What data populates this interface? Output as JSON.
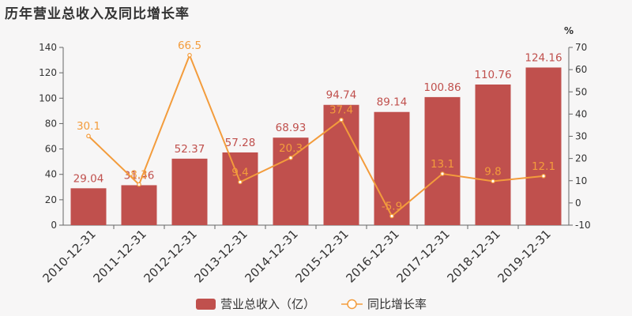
{
  "chart_data": {
    "type": "bar",
    "title": "历年营业总收入及同比增长率",
    "right_unit": "%",
    "categories": [
      "2010-12-31",
      "2011-12-31",
      "2012-12-31",
      "2013-12-31",
      "2014-12-31",
      "2015-12-31",
      "2016-12-31",
      "2017-12-31",
      "2018-12-31",
      "2019-12-31"
    ],
    "series": [
      {
        "name": "营业总收入（亿）",
        "type": "bar",
        "axis": "left",
        "color": "#c0504d",
        "values": [
          29.04,
          31.46,
          52.37,
          57.28,
          68.93,
          94.74,
          89.14,
          100.86,
          110.76,
          124.16
        ],
        "labels": [
          "29.04",
          "31.46",
          "52.37",
          "57.28",
          "68.93",
          "94.74",
          "89.14",
          "100.86",
          "110.76",
          "124.16"
        ]
      },
      {
        "name": "同比增长率",
        "type": "line",
        "axis": "right",
        "color": "#f39c3c",
        "values": [
          30.1,
          8.3,
          66.5,
          9.4,
          20.3,
          37.4,
          -5.9,
          13.1,
          9.8,
          12.1
        ],
        "labels": [
          "30.1",
          "8.3",
          "66.5",
          "9.4",
          "20.3",
          "37.4",
          "-5.9",
          "13.1",
          "9.8",
          "12.1"
        ]
      }
    ],
    "y_left": {
      "lim": [
        0,
        140
      ],
      "ticks": [
        "0",
        "20",
        "40",
        "60",
        "80",
        "100",
        "120",
        "140"
      ]
    },
    "y_right": {
      "lim": [
        -10,
        70
      ],
      "ticks": [
        "-10",
        "0",
        "10",
        "20",
        "30",
        "40",
        "50",
        "60",
        "70"
      ]
    },
    "legend_position": "bottom",
    "grid": false
  }
}
